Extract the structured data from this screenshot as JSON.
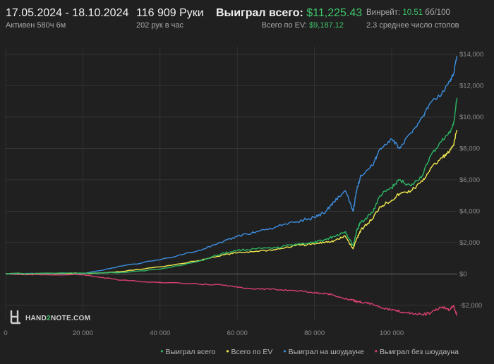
{
  "header": {
    "date_range": "17.05.2024 - 18.10.2024",
    "active": "Активен 580ч 6м",
    "hands": "116 909 Руки",
    "hands_rate": "202 рук в час",
    "won_label": "Выиграл всего: ",
    "won_value": "$11,225.43",
    "ev_label": "Всего по EV: ",
    "ev_value": "$9,187.12",
    "winrate_label": "Винрейт: ",
    "winrate_value": "10.51",
    "winrate_unit": " бб/100",
    "tables": "2.3 среднее число столов"
  },
  "logo": {
    "prefix": "HAND",
    "mid": "2",
    "suffix": "NOTE.COM"
  },
  "colors": {
    "background": "#202020",
    "grid": "#3a3a3a",
    "zero": "#6a6a6a",
    "won": "#2db765",
    "ev": "#f2e94e",
    "showdown": "#3d8fe0",
    "nonshowdown": "#d9406e"
  },
  "chart_data": {
    "type": "line",
    "title": "",
    "xlabel": "",
    "ylabel": "",
    "xlim": [
      0,
      117000
    ],
    "ylim": [
      -3000,
      14500
    ],
    "x_ticks": [
      0,
      20000,
      40000,
      60000,
      80000,
      100000
    ],
    "x_tick_labels": [
      "0",
      "20 000",
      "40 000",
      "60 000",
      "80 000",
      "100 000"
    ],
    "y_ticks": [
      14000,
      12000,
      10000,
      8000,
      6000,
      4000,
      2000,
      0,
      -2000
    ],
    "y_tick_labels": [
      "$14,000",
      "$12,000",
      "$10,000",
      "$8,000",
      "$6,000",
      "$4,000",
      "$2,000",
      "$0",
      "-$2,000"
    ],
    "grid": true,
    "legend_position": "bottom-right",
    "series": [
      {
        "name": "Выиграл всего",
        "color_key": "won",
        "x": [
          0,
          3000,
          5000,
          10000,
          20000,
          24000,
          30000,
          40000,
          50000,
          56000,
          60000,
          65000,
          70000,
          75000,
          80000,
          83000,
          85000,
          88000,
          90000,
          91000,
          92000,
          95000,
          97000,
          100000,
          102000,
          105000,
          108000,
          110000,
          113000,
          115000,
          116000,
          116909
        ],
        "y": [
          0,
          50,
          0,
          50,
          50,
          60,
          100,
          300,
          800,
          1300,
          1500,
          1600,
          1650,
          1900,
          2000,
          2200,
          2400,
          2700,
          1800,
          2800,
          3300,
          3900,
          5000,
          5500,
          6000,
          5600,
          6300,
          7500,
          8500,
          9000,
          9500,
          11225
        ]
      },
      {
        "name": "Всего по EV",
        "color_key": "ev",
        "x": [
          0,
          3000,
          5000,
          10000,
          20000,
          24000,
          30000,
          40000,
          50000,
          56000,
          60000,
          65000,
          70000,
          75000,
          80000,
          83000,
          85000,
          88000,
          90000,
          91000,
          92000,
          95000,
          97000,
          100000,
          102000,
          105000,
          108000,
          110000,
          113000,
          115000,
          116000,
          116909
        ],
        "y": [
          0,
          40,
          0,
          40,
          40,
          50,
          150,
          450,
          850,
          1200,
          1350,
          1450,
          1550,
          1800,
          1900,
          2050,
          2100,
          2400,
          1600,
          2300,
          2800,
          3500,
          4300,
          4700,
          5100,
          5300,
          5900,
          6700,
          7400,
          7800,
          8200,
          9187
        ]
      },
      {
        "name": "Выиграл на шоудауне",
        "color_key": "showdown",
        "x": [
          0,
          3000,
          5000,
          10000,
          20000,
          24000,
          30000,
          40000,
          50000,
          56000,
          60000,
          65000,
          70000,
          75000,
          80000,
          83000,
          85000,
          88000,
          90000,
          91000,
          92000,
          95000,
          97000,
          100000,
          102000,
          105000,
          108000,
          110000,
          113000,
          115000,
          116000,
          116909
        ],
        "y": [
          0,
          20,
          20,
          30,
          30,
          200,
          500,
          900,
          1500,
          2000,
          2400,
          2700,
          3000,
          3300,
          3600,
          4000,
          4600,
          5300,
          4000,
          5400,
          6300,
          6900,
          8000,
          8600,
          8000,
          9000,
          10000,
          10900,
          11500,
          12300,
          12700,
          13900
        ]
      },
      {
        "name": "Выиграл без шоудауна",
        "color_key": "nonshowdown",
        "x": [
          0,
          3000,
          5000,
          10000,
          20000,
          24000,
          30000,
          40000,
          50000,
          56000,
          60000,
          65000,
          70000,
          75000,
          80000,
          83000,
          85000,
          88000,
          90000,
          91000,
          92000,
          95000,
          97000,
          100000,
          102000,
          105000,
          108000,
          110000,
          113000,
          115000,
          116000,
          116909
        ],
        "y": [
          0,
          -30,
          -50,
          -50,
          -50,
          -200,
          -400,
          -550,
          -650,
          -700,
          -850,
          -950,
          -1000,
          -1050,
          -1200,
          -1250,
          -1350,
          -1600,
          -1650,
          -1800,
          -1800,
          -1900,
          -2100,
          -2300,
          -2400,
          -2500,
          -2600,
          -2500,
          -2100,
          -2300,
          -2000,
          -2650
        ]
      }
    ]
  }
}
